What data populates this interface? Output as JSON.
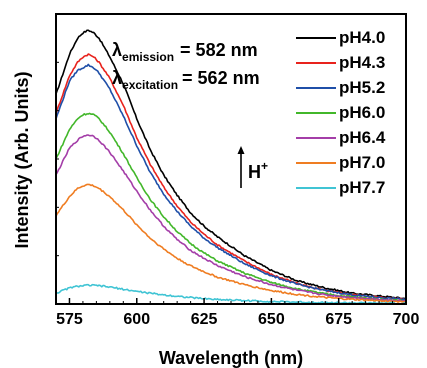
{
  "chart_data": {
    "type": "line",
    "xlabel": "Wavelength (nm)",
    "ylabel": "Intensity (Arb. Units)",
    "xlim": [
      570,
      700
    ],
    "ylim": [
      0,
      1.08
    ],
    "xticks": [
      575,
      600,
      625,
      650,
      675,
      700
    ],
    "grid": false,
    "legend_position": "top-right",
    "annotations": {
      "emission": {
        "symbol": "λ",
        "sub": "emission",
        "text": "= 582 nm"
      },
      "excitation": {
        "symbol": "λ",
        "sub": "excitation",
        "text": "= 562 nm"
      },
      "acid": {
        "label": "H",
        "sup": "+"
      }
    },
    "x": [
      570,
      575,
      578,
      580,
      582,
      584,
      586,
      590,
      595,
      600,
      605,
      610,
      615,
      620,
      625,
      630,
      640,
      650,
      660,
      670,
      680,
      690,
      700
    ],
    "series": [
      {
        "name": "pH4.0",
        "color": "#000000",
        "values": [
          0.78,
          0.93,
          0.99,
          1.01,
          1.02,
          1.01,
          0.99,
          0.92,
          0.82,
          0.69,
          0.575,
          0.48,
          0.405,
          0.34,
          0.29,
          0.25,
          0.18,
          0.125,
          0.085,
          0.06,
          0.04,
          0.03,
          0.02
        ]
      },
      {
        "name": "pH4.3",
        "color": "#e8231d",
        "values": [
          0.71,
          0.85,
          0.9,
          0.92,
          0.93,
          0.92,
          0.9,
          0.84,
          0.74,
          0.62,
          0.52,
          0.435,
          0.365,
          0.305,
          0.26,
          0.22,
          0.16,
          0.11,
          0.075,
          0.05,
          0.035,
          0.025,
          0.018
        ]
      },
      {
        "name": "pH5.2",
        "color": "#1f4fa8",
        "values": [
          0.69,
          0.83,
          0.87,
          0.88,
          0.89,
          0.88,
          0.86,
          0.8,
          0.7,
          0.59,
          0.49,
          0.41,
          0.345,
          0.29,
          0.245,
          0.21,
          0.15,
          0.105,
          0.072,
          0.05,
          0.034,
          0.024,
          0.017
        ]
      },
      {
        "name": "pH6.0",
        "color": "#42b72a",
        "values": [
          0.54,
          0.65,
          0.69,
          0.705,
          0.71,
          0.705,
          0.69,
          0.64,
          0.56,
          0.47,
          0.39,
          0.325,
          0.27,
          0.225,
          0.19,
          0.16,
          0.115,
          0.08,
          0.055,
          0.038,
          0.026,
          0.018,
          0.012
        ]
      },
      {
        "name": "pH6.4",
        "color": "#a43ea8",
        "values": [
          0.48,
          0.58,
          0.61,
          0.625,
          0.63,
          0.625,
          0.61,
          0.565,
          0.495,
          0.42,
          0.35,
          0.29,
          0.24,
          0.2,
          0.17,
          0.143,
          0.102,
          0.072,
          0.05,
          0.034,
          0.024,
          0.017,
          0.011
        ]
      },
      {
        "name": "pH7.0",
        "color": "#ef7d22",
        "values": [
          0.33,
          0.4,
          0.43,
          0.44,
          0.445,
          0.44,
          0.43,
          0.4,
          0.35,
          0.295,
          0.245,
          0.205,
          0.17,
          0.142,
          0.12,
          0.1,
          0.072,
          0.05,
          0.035,
          0.024,
          0.017,
          0.012,
          0.008
        ]
      },
      {
        "name": "pH7.7",
        "color": "#40c4d4",
        "values": [
          0.04,
          0.06,
          0.066,
          0.068,
          0.07,
          0.069,
          0.068,
          0.063,
          0.055,
          0.047,
          0.04,
          0.034,
          0.029,
          0.024,
          0.02,
          0.017,
          0.013,
          0.009,
          0.007,
          0.005,
          0.004,
          0.003,
          0.002
        ]
      }
    ]
  }
}
